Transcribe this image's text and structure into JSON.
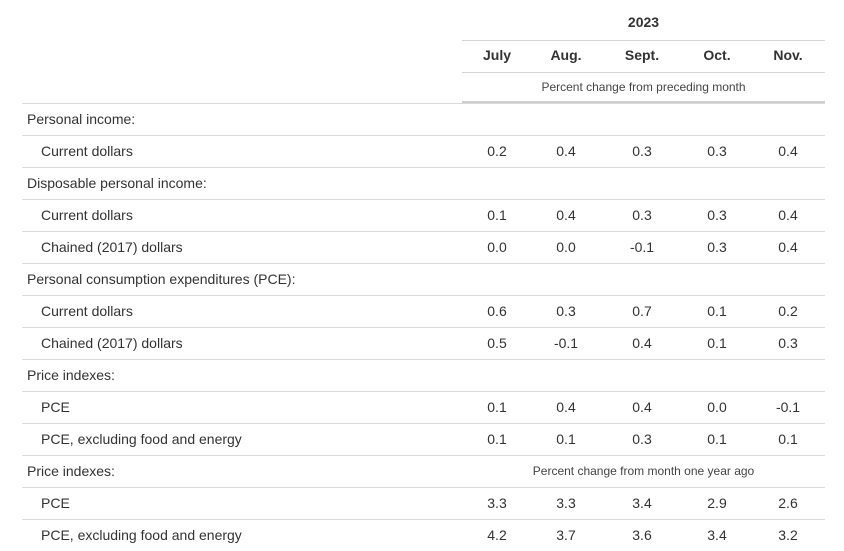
{
  "header": {
    "year": "2023",
    "months": [
      "July",
      "Aug.",
      "Sept.",
      "Oct.",
      "Nov."
    ],
    "subheading": "Percent change from preceding month"
  },
  "rows": [
    {
      "kind": "section",
      "label": "Personal income:"
    },
    {
      "kind": "item",
      "label": "Current dollars",
      "values": [
        "0.2",
        "0.4",
        "0.3",
        "0.3",
        "0.4"
      ]
    },
    {
      "kind": "section",
      "label": "Disposable personal income:"
    },
    {
      "kind": "item",
      "label": "Current dollars",
      "values": [
        "0.1",
        "0.4",
        "0.3",
        "0.3",
        "0.4"
      ]
    },
    {
      "kind": "item",
      "label": "Chained (2017) dollars",
      "values": [
        "0.0",
        "0.0",
        "-0.1",
        "0.3",
        "0.4"
      ]
    },
    {
      "kind": "section",
      "label": "Personal consumption expenditures (PCE):"
    },
    {
      "kind": "item",
      "label": "Current dollars",
      "values": [
        "0.6",
        "0.3",
        "0.7",
        "0.1",
        "0.2"
      ]
    },
    {
      "kind": "item",
      "label": "Chained (2017) dollars",
      "values": [
        "0.5",
        "-0.1",
        "0.4",
        "0.1",
        "0.3"
      ]
    },
    {
      "kind": "section",
      "label": "Price indexes:"
    },
    {
      "kind": "item",
      "label": "PCE",
      "values": [
        "0.1",
        "0.4",
        "0.4",
        "0.0",
        "-0.1"
      ]
    },
    {
      "kind": "item",
      "label": "PCE, excluding food and energy",
      "values": [
        "0.1",
        "0.1",
        "0.3",
        "0.1",
        "0.1"
      ]
    },
    {
      "kind": "section",
      "label": "Price indexes:",
      "subheading": "Percent change from month one year ago"
    },
    {
      "kind": "item",
      "label": "PCE",
      "values": [
        "3.3",
        "3.3",
        "3.4",
        "2.9",
        "2.6"
      ]
    },
    {
      "kind": "item",
      "label": "PCE, excluding food and energy",
      "values": [
        "4.2",
        "3.7",
        "3.6",
        "3.4",
        "3.2"
      ]
    }
  ]
}
